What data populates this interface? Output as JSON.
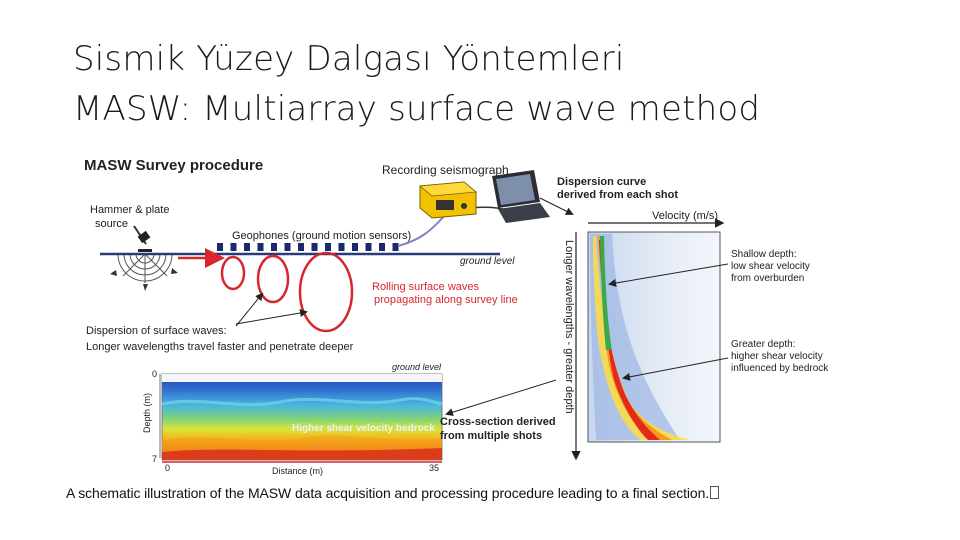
{
  "title": {
    "line1": "Sismik Yüzey Dalgası Yöntemleri",
    "line2": "MASW: Multiarray surface wave method"
  },
  "figure": {
    "heading": "MASW Survey procedure",
    "hammer_label_1": "Hammer & plate",
    "hammer_label_2": "source",
    "geophones_label": "Geophones (ground motion sensors)",
    "seismograph_label": "Recording seismograph",
    "ground_level_label": "ground level",
    "rolling_1": "Rolling surface waves",
    "rolling_2": "propagating along survey line",
    "dispersion_1": "Dispersion of surface waves:",
    "dispersion_2": "Longer wavelengths travel faster and penetrate deeper",
    "curve_label_1": "Dispersion curve",
    "curve_label_2": "derived from each shot",
    "velocity_axis": "Velocity (m/s)",
    "wavelength_axis": "Longer wavelengths - greater depth",
    "shallow_1": "Shallow depth:",
    "shallow_2": "low shear velocity",
    "shallow_3": "from overburden",
    "greater_1": "Greater depth:",
    "greater_2": "higher shear velocity",
    "greater_3": "influenced by bedrock",
    "section_ground_level": "ground level",
    "depth_axis": "Depth (m)",
    "depth_top": "0",
    "depth_bottom": "7",
    "distance_axis": "Distance (m)",
    "distance_start": "0",
    "distance_end": "35",
    "bedrock_text": "Higher shear velocity bedrock",
    "cross_1": "Cross-section derived",
    "cross_2": "from multiple shots"
  },
  "caption": "A schematic illustration of the MASW data acquisition and processing procedure leading to a final section.",
  "colors": {
    "red": "#d7262c",
    "navy": "#1b2a6b",
    "seismograph_yellow": "#f2c200",
    "ground_line": "#2a3a78"
  }
}
